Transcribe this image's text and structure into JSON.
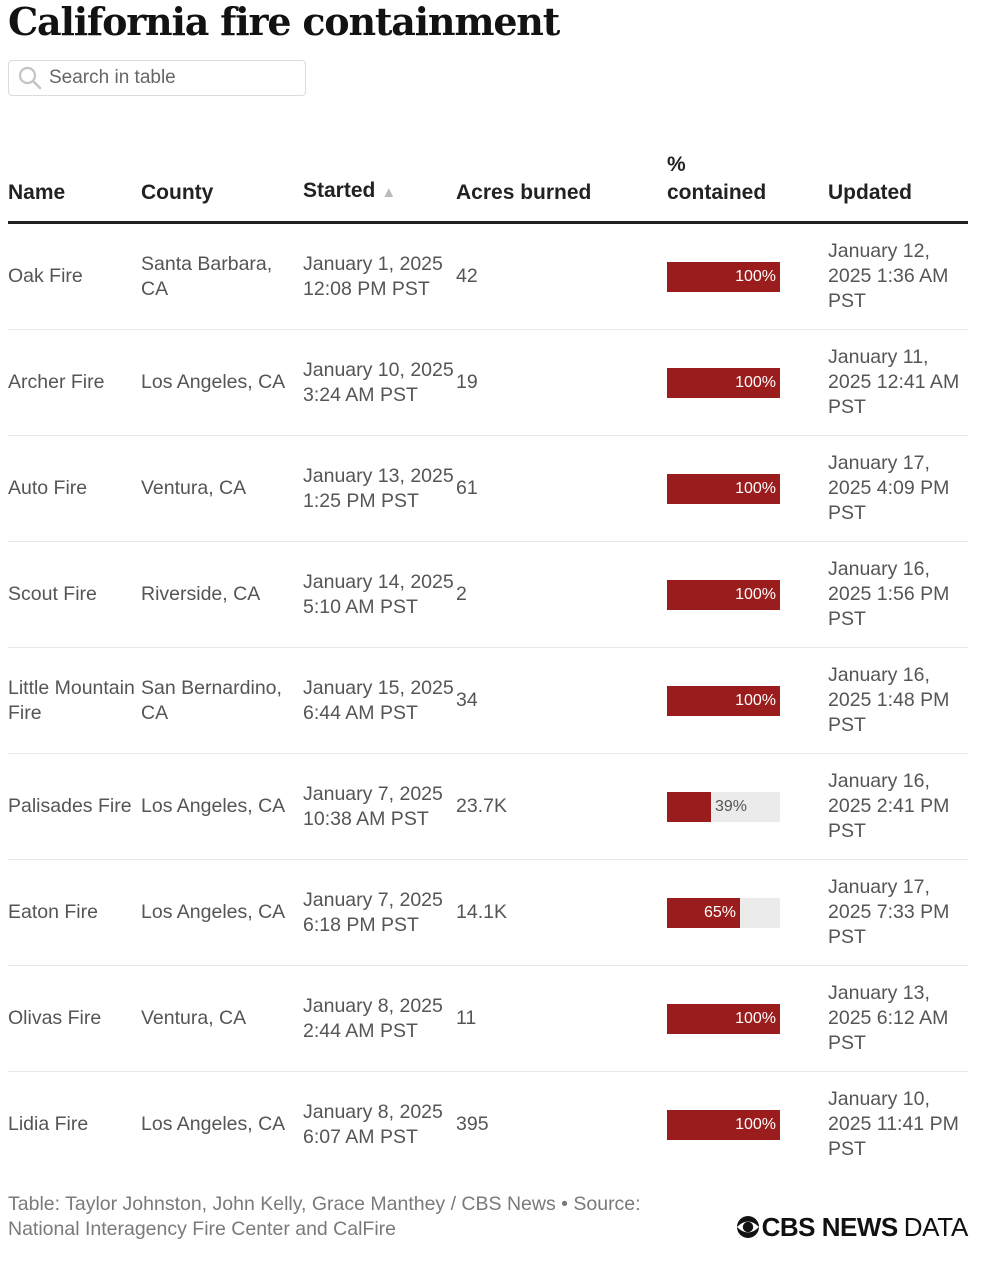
{
  "title": "California fire containment",
  "search": {
    "placeholder": "Search in table"
  },
  "columns": {
    "name": "Name",
    "county": "County",
    "started": "Started",
    "acres": "Acres burned",
    "contained_line1": "%",
    "contained_line2": "contained",
    "updated": "Updated"
  },
  "sort_indicator": "▲",
  "rows": [
    {
      "name": "Oak Fire",
      "county": "Santa Barbara, CA",
      "started": "January 1, 2025 12:08 PM PST",
      "acres": "42",
      "contained": 100,
      "contained_label": "100%",
      "updated": "January 12, 2025 1:36 AM PST"
    },
    {
      "name": "Archer Fire",
      "county": "Los Angeles, CA",
      "started": "January 10, 2025 3:24 AM PST",
      "acres": "19",
      "contained": 100,
      "contained_label": "100%",
      "updated": "January 11, 2025 12:41 AM PST"
    },
    {
      "name": "Auto Fire",
      "county": "Ventura, CA",
      "started": "January 13, 2025 1:25 PM PST",
      "acres": "61",
      "contained": 100,
      "contained_label": "100%",
      "updated": "January 17, 2025 4:09 PM PST"
    },
    {
      "name": "Scout Fire",
      "county": "Riverside, CA",
      "started": "January 14, 2025 5:10 AM PST",
      "acres": "2",
      "contained": 100,
      "contained_label": "100%",
      "updated": "January 16, 2025 1:56 PM PST"
    },
    {
      "name": "Little Mountain Fire",
      "county": "San Bernardino, CA",
      "started": "January 15, 2025 6:44 AM PST",
      "acres": "34",
      "contained": 100,
      "contained_label": "100%",
      "updated": "January 16, 2025 1:48 PM PST"
    },
    {
      "name": "Palisades Fire",
      "county": "Los Angeles, CA",
      "started": "January 7, 2025 10:38 AM PST",
      "acres": "23.7K",
      "contained": 39,
      "contained_label": "39%",
      "updated": "January 16, 2025 2:41 PM PST"
    },
    {
      "name": "Eaton Fire",
      "county": "Los Angeles, CA",
      "started": "January 7, 2025 6:18 PM PST",
      "acres": "14.1K",
      "contained": 65,
      "contained_label": "65%",
      "updated": "January 17, 2025 7:33 PM PST"
    },
    {
      "name": "Olivas Fire",
      "county": "Ventura, CA",
      "started": "January 8, 2025 2:44 AM PST",
      "acres": "11",
      "contained": 100,
      "contained_label": "100%",
      "updated": "January 13, 2025 6:12 AM PST"
    },
    {
      "name": "Lidia Fire",
      "county": "Los Angeles, CA",
      "started": "January 8, 2025 6:07 AM PST",
      "acres": "395",
      "contained": 100,
      "contained_label": "100%",
      "updated": "January 10, 2025 11:41 PM PST"
    }
  ],
  "footer": {
    "credit": "Table: Taylor Johnston, John Kelly, Grace Manthey / CBS News • Source: National Interagency Fire Center and CalFire"
  },
  "logo": {
    "brand": "CBS NEWS",
    "suffix": "DATA"
  },
  "colors": {
    "bar_fill": "#9b1c1c",
    "bar_track": "#ebebeb",
    "title": "#121212"
  },
  "chart_data": {
    "type": "table",
    "title": "California fire containment",
    "columns": [
      "Name",
      "County",
      "Started",
      "Acres burned",
      "% contained",
      "Updated"
    ],
    "sorted_by": "Started",
    "categories": [
      "Oak Fire",
      "Archer Fire",
      "Auto Fire",
      "Scout Fire",
      "Little Mountain Fire",
      "Palisades Fire",
      "Eaton Fire",
      "Olivas Fire",
      "Lidia Fire"
    ],
    "series": [
      {
        "name": "% contained",
        "values": [
          100,
          100,
          100,
          100,
          100,
          39,
          65,
          100,
          100
        ]
      }
    ],
    "ylim": [
      0,
      100
    ]
  }
}
